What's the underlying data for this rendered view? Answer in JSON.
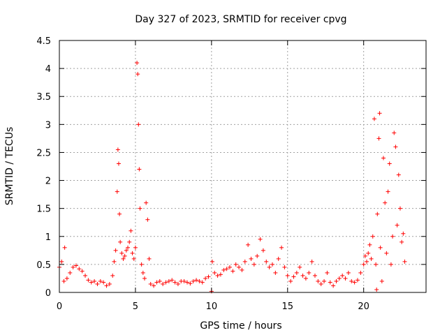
{
  "chart_data": {
    "type": "scatter",
    "title": "Day 327 of 2023, SRMTID for receiver cpvg",
    "xlabel": "GPS time / hours",
    "ylabel": "SRMTID / TECUs",
    "xlim": [
      0,
      24.1
    ],
    "ylim": [
      0,
      4.5
    ],
    "xticks": [
      0,
      5,
      10,
      15,
      20
    ],
    "xtick_labels": [
      "0",
      "5",
      "10",
      "15",
      "20"
    ],
    "yticks": [
      0,
      0.5,
      1,
      1.5,
      2,
      2.5,
      3,
      3.5,
      4,
      4.5
    ],
    "ytick_labels": [
      "0",
      "0.5",
      "1",
      "1.5",
      "2",
      "2.5",
      "3",
      "3.5",
      "4",
      "4.5"
    ],
    "grid": true,
    "marker": "+",
    "color": "#ff0000",
    "series": [
      {
        "name": "SRMTID",
        "x": [
          0.0,
          0.15,
          0.3,
          0.35,
          0.5,
          0.7,
          0.9,
          1.1,
          1.3,
          1.5,
          1.7,
          1.9,
          2.1,
          2.3,
          2.5,
          2.7,
          2.9,
          3.1,
          3.3,
          3.5,
          3.6,
          3.7,
          3.8,
          3.85,
          3.9,
          3.95,
          4.0,
          4.1,
          4.2,
          4.3,
          4.4,
          4.5,
          4.6,
          4.7,
          4.8,
          4.9,
          5.0,
          5.1,
          5.15,
          5.2,
          5.25,
          5.3,
          5.4,
          5.5,
          5.6,
          5.7,
          5.8,
          5.9,
          6.0,
          6.2,
          6.4,
          6.6,
          6.8,
          7.0,
          7.2,
          7.4,
          7.6,
          7.8,
          8.0,
          8.2,
          8.4,
          8.6,
          8.8,
          9.0,
          9.2,
          9.4,
          9.6,
          9.8,
          10.0,
          10.05,
          10.2,
          10.4,
          10.6,
          10.8,
          11.0,
          11.2,
          11.4,
          11.6,
          11.8,
          12.0,
          12.2,
          12.4,
          12.6,
          12.8,
          13.0,
          13.2,
          13.4,
          13.6,
          13.8,
          14.0,
          14.2,
          14.4,
          14.6,
          14.8,
          15.0,
          15.2,
          15.4,
          15.6,
          15.8,
          16.0,
          16.2,
          16.4,
          16.6,
          16.8,
          17.0,
          17.2,
          17.4,
          17.6,
          17.8,
          18.0,
          18.2,
          18.4,
          18.6,
          18.8,
          19.0,
          19.2,
          19.4,
          19.6,
          19.8,
          20.0,
          20.1,
          20.2,
          20.3,
          20.4,
          20.5,
          20.6,
          20.7,
          20.8,
          20.85,
          20.9,
          21.0,
          21.05,
          21.1,
          21.2,
          21.3,
          21.4,
          21.5,
          21.6,
          21.7,
          21.8,
          21.9,
          22.0,
          22.1,
          22.2,
          22.3,
          22.4,
          22.5,
          22.6,
          22.7
        ],
        "y": [
          0.45,
          0.55,
          0.2,
          0.8,
          0.25,
          0.35,
          0.45,
          0.48,
          0.42,
          0.38,
          0.3,
          0.22,
          0.18,
          0.2,
          0.15,
          0.2,
          0.18,
          0.12,
          0.15,
          0.3,
          0.55,
          0.75,
          1.8,
          2.55,
          2.3,
          1.4,
          0.9,
          0.7,
          0.6,
          0.65,
          0.75,
          0.8,
          0.9,
          1.1,
          0.7,
          0.6,
          0.8,
          4.1,
          3.9,
          3.0,
          2.2,
          1.5,
          0.5,
          0.35,
          0.25,
          1.6,
          1.3,
          0.6,
          0.15,
          0.12,
          0.18,
          0.2,
          0.15,
          0.18,
          0.2,
          0.22,
          0.18,
          0.15,
          0.2,
          0.2,
          0.18,
          0.16,
          0.2,
          0.22,
          0.2,
          0.18,
          0.25,
          0.28,
          0.02,
          0.55,
          0.35,
          0.3,
          0.32,
          0.4,
          0.42,
          0.45,
          0.38,
          0.5,
          0.45,
          0.4,
          0.55,
          0.85,
          0.6,
          0.5,
          0.65,
          0.95,
          0.75,
          0.55,
          0.45,
          0.5,
          0.35,
          0.6,
          0.8,
          0.45,
          0.3,
          0.2,
          0.28,
          0.35,
          0.45,
          0.3,
          0.25,
          0.35,
          0.55,
          0.3,
          0.2,
          0.15,
          0.2,
          0.35,
          0.18,
          0.12,
          0.2,
          0.25,
          0.3,
          0.25,
          0.35,
          0.2,
          0.18,
          0.22,
          0.35,
          0.5,
          0.65,
          0.55,
          0.7,
          0.85,
          0.6,
          1.0,
          3.1,
          0.5,
          0.05,
          1.4,
          2.75,
          3.2,
          0.8,
          0.2,
          2.4,
          1.6,
          0.7,
          1.8,
          2.3,
          0.5,
          1.0,
          2.85,
          2.6,
          1.2,
          2.1,
          1.5,
          0.9,
          1.05,
          0.55
        ]
      }
    ]
  }
}
